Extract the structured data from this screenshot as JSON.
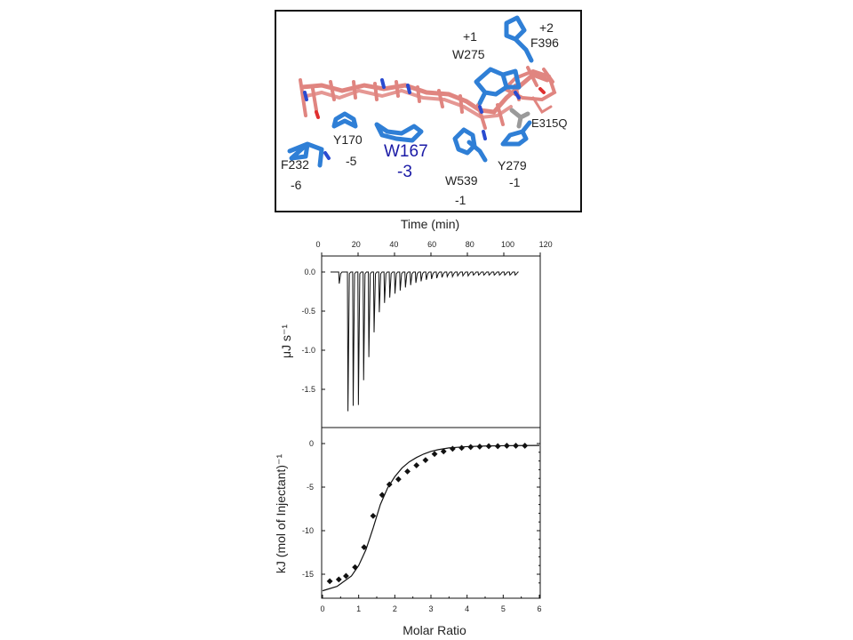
{
  "structure_panel": {
    "residue_labels": [
      {
        "id": "plus1",
        "text": "+1"
      },
      {
        "id": "w275",
        "text": "W275"
      },
      {
        "id": "plus2",
        "text": "+2"
      },
      {
        "id": "f396",
        "text": "F396"
      },
      {
        "id": "e315q",
        "text": "E315Q"
      },
      {
        "id": "y170",
        "text": "Y170"
      },
      {
        "id": "minus5",
        "text": "-5"
      },
      {
        "id": "w167",
        "text": "W167"
      },
      {
        "id": "minus3",
        "text": "-3"
      },
      {
        "id": "f232",
        "text": "F232"
      },
      {
        "id": "minus6",
        "text": "-6"
      },
      {
        "id": "w539",
        "text": "W539"
      },
      {
        "id": "minus1a",
        "text": "-1"
      },
      {
        "id": "y279",
        "text": "Y279"
      },
      {
        "id": "minus1b",
        "text": "-1"
      }
    ],
    "colors": {
      "ligand": "#e08580",
      "protein": "#2f7fd6",
      "highlight_label": "#1a1aa6",
      "mutant": "#9a9a9a"
    }
  },
  "chart_data": [
    {
      "type": "line",
      "xlabel": "Time (min)",
      "ylabel": "μJ s⁻¹",
      "xlim": [
        0,
        120
      ],
      "ylim": [
        -2.0,
        0.1
      ],
      "xticks": [
        "0",
        "20",
        "40",
        "60",
        "80",
        "100",
        "120"
      ],
      "yticks": [
        "0.0",
        "-0.5",
        "-1.0",
        "-1.5"
      ],
      "grid": false,
      "injection_peaks": [
        {
          "time": 5,
          "min": -0.15
        },
        {
          "time": 10,
          "min": -1.8
        },
        {
          "time": 13,
          "min": -1.73
        },
        {
          "time": 16,
          "min": -1.72
        },
        {
          "time": 19,
          "min": -1.4
        },
        {
          "time": 22,
          "min": -1.1
        },
        {
          "time": 25,
          "min": -0.78
        },
        {
          "time": 28,
          "min": -0.52
        },
        {
          "time": 31,
          "min": -0.4
        },
        {
          "time": 34,
          "min": -0.33
        },
        {
          "time": 37,
          "min": -0.28
        },
        {
          "time": 40,
          "min": -0.24
        },
        {
          "time": 43,
          "min": -0.2
        },
        {
          "time": 46,
          "min": -0.17
        },
        {
          "time": 49,
          "min": -0.14
        },
        {
          "time": 52,
          "min": -0.12
        },
        {
          "time": 55,
          "min": -0.1
        },
        {
          "time": 58,
          "min": -0.09
        },
        {
          "time": 61,
          "min": -0.08
        },
        {
          "time": 64,
          "min": -0.07
        },
        {
          "time": 67,
          "min": -0.06
        },
        {
          "time": 70,
          "min": -0.06
        },
        {
          "time": 73,
          "min": -0.05
        },
        {
          "time": 76,
          "min": -0.05
        },
        {
          "time": 79,
          "min": -0.05
        },
        {
          "time": 82,
          "min": -0.04
        },
        {
          "time": 85,
          "min": -0.04
        },
        {
          "time": 88,
          "min": -0.04
        },
        {
          "time": 91,
          "min": -0.04
        },
        {
          "time": 94,
          "min": -0.04
        },
        {
          "time": 97,
          "min": -0.04
        },
        {
          "time": 100,
          "min": -0.04
        },
        {
          "time": 103,
          "min": -0.04
        },
        {
          "time": 106,
          "min": -0.04
        }
      ],
      "trace_end_time": 108
    },
    {
      "type": "scatter",
      "xlabel": "Molar Ratio",
      "ylabel": "kJ (mol of Injectant)⁻¹",
      "xlim": [
        0,
        6
      ],
      "ylim": [
        -17,
        1
      ],
      "xticks": [
        "0",
        "1",
        "2",
        "3",
        "4",
        "5",
        "6"
      ],
      "yticks": [
        "0",
        "-5",
        "-10",
        "-15"
      ],
      "grid": false,
      "points": [
        {
          "x": 0.2,
          "y": -15.8
        },
        {
          "x": 0.45,
          "y": -15.6
        },
        {
          "x": 0.65,
          "y": -15.2
        },
        {
          "x": 0.9,
          "y": -14.2
        },
        {
          "x": 1.15,
          "y": -11.9
        },
        {
          "x": 1.4,
          "y": -8.3
        },
        {
          "x": 1.65,
          "y": -5.9
        },
        {
          "x": 1.85,
          "y": -4.7
        },
        {
          "x": 2.1,
          "y": -4.1
        },
        {
          "x": 2.35,
          "y": -3.2
        },
        {
          "x": 2.6,
          "y": -2.5
        },
        {
          "x": 2.85,
          "y": -1.9
        },
        {
          "x": 3.1,
          "y": -1.2
        },
        {
          "x": 3.35,
          "y": -0.9
        },
        {
          "x": 3.6,
          "y": -0.6
        },
        {
          "x": 3.85,
          "y": -0.5
        },
        {
          "x": 4.1,
          "y": -0.4
        },
        {
          "x": 4.35,
          "y": -0.35
        },
        {
          "x": 4.6,
          "y": -0.3
        },
        {
          "x": 4.85,
          "y": -0.3
        },
        {
          "x": 5.1,
          "y": -0.25
        },
        {
          "x": 5.35,
          "y": -0.25
        },
        {
          "x": 5.6,
          "y": -0.25
        }
      ],
      "fit": {
        "x": [
          0,
          0.4,
          0.8,
          1.0,
          1.2,
          1.4,
          1.6,
          1.8,
          2.0,
          2.2,
          2.4,
          2.6,
          2.8,
          3.0,
          3.2,
          3.5,
          4.0,
          4.5,
          5.0,
          5.5,
          6.0
        ],
        "y": [
          -16.9,
          -16.4,
          -15.2,
          -14.0,
          -12.2,
          -9.7,
          -7.0,
          -5.1,
          -3.8,
          -2.8,
          -2.1,
          -1.6,
          -1.2,
          -0.9,
          -0.7,
          -0.5,
          -0.35,
          -0.28,
          -0.25,
          -0.23,
          -0.22
        ]
      }
    }
  ]
}
